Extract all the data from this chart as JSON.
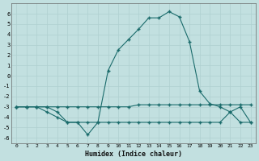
{
  "xlabel": "Humidex (Indice chaleur)",
  "background_color": "#c2e0e0",
  "line_color": "#1a6b6b",
  "grid_color": "#afd0d0",
  "x_indices": [
    0,
    1,
    2,
    3,
    4,
    5,
    6,
    7,
    8,
    9,
    10,
    11,
    12,
    13,
    14,
    15,
    16,
    17,
    18,
    19,
    20,
    21,
    22,
    23
  ],
  "series1": [
    -3.0,
    -3.0,
    -3.0,
    -3.0,
    -3.5,
    -4.5,
    -4.5,
    -5.7,
    -4.5,
    0.5,
    2.5,
    3.5,
    4.5,
    5.6,
    5.6,
    6.2,
    5.7,
    3.3,
    -1.5,
    -2.7,
    -3.0,
    -3.5,
    -3.0,
    -4.5
  ],
  "series2": [
    -3.0,
    -3.0,
    -3.0,
    -3.0,
    -3.0,
    -3.0,
    -3.0,
    -3.0,
    -3.0,
    -3.0,
    -3.0,
    -3.0,
    -2.8,
    -2.8,
    -2.8,
    -2.8,
    -2.8,
    -2.8,
    -2.8,
    -2.8,
    -2.8,
    -2.8,
    -2.8,
    -2.8
  ],
  "series3": [
    -3.0,
    -3.0,
    -3.0,
    -3.5,
    -4.0,
    -4.5,
    -4.5,
    -4.5,
    -4.5,
    -4.5,
    -4.5,
    -4.5,
    -4.5,
    -4.5,
    -4.5,
    -4.5,
    -4.5,
    -4.5,
    -4.5,
    -4.5,
    -4.5,
    -3.5,
    -4.5,
    -4.5
  ],
  "xlim": [
    -0.5,
    23.5
  ],
  "ylim": [
    -6.5,
    7.0
  ],
  "yticks": [
    -6,
    -5,
    -4,
    -3,
    -2,
    -1,
    0,
    1,
    2,
    3,
    4,
    5,
    6
  ],
  "xticks": [
    0,
    1,
    2,
    3,
    4,
    5,
    6,
    7,
    8,
    9,
    10,
    11,
    12,
    13,
    14,
    15,
    16,
    17,
    18,
    19,
    20,
    21,
    22,
    23
  ]
}
